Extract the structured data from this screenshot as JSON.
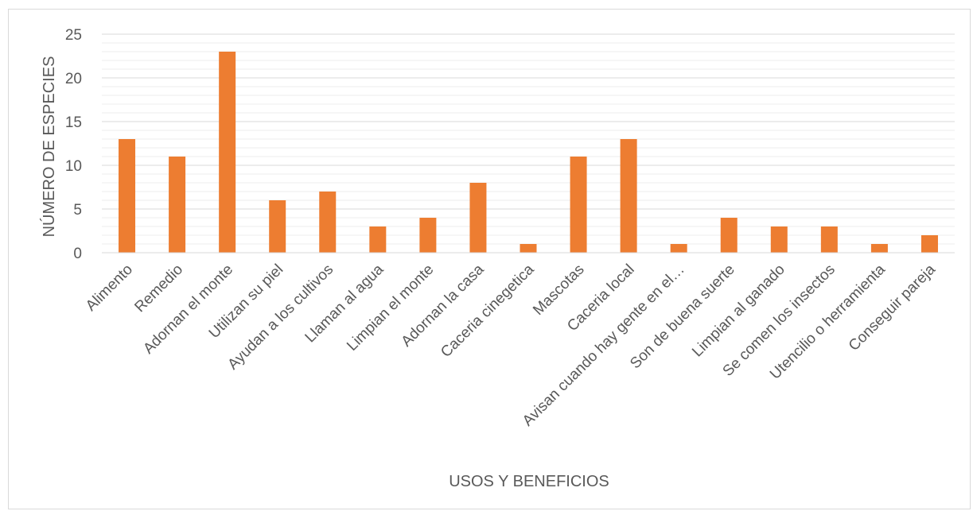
{
  "chart_data": {
    "type": "bar",
    "title": "",
    "xlabel": "USOS Y BENEFICIOS",
    "ylabel": "NÚMERO DE ESPECIES",
    "ylim": [
      0,
      25
    ],
    "yticks": [
      0,
      5,
      10,
      15,
      20,
      25
    ],
    "minor_grid_step": 1,
    "grid": true,
    "legend": "none",
    "categories": [
      "Alimento",
      "Remedio",
      "Adornan el monte",
      "Utilizan su piel",
      "Ayudan a los cultivos",
      "Llaman al agua",
      "Limpian el monte",
      "Adornan la casa",
      "Caceria cinegetica",
      "Mascotas",
      "Caceria local",
      "Avisan cuando hay gente en el…",
      "Son de buena suerte",
      "Limpian al ganado",
      "Se comen los insectos",
      "Utencilio o herramienta",
      "Conseguir pareja"
    ],
    "values": [
      13,
      11,
      23,
      6,
      7,
      3,
      4,
      8,
      1,
      11,
      13,
      1,
      4,
      3,
      3,
      1,
      2
    ],
    "colors": {
      "bar": "#ED7D31",
      "major_grid": "#D9D9D9",
      "minor_grid": "#EDEDED",
      "axis": "#D9D9D9",
      "text": "#595959"
    }
  }
}
